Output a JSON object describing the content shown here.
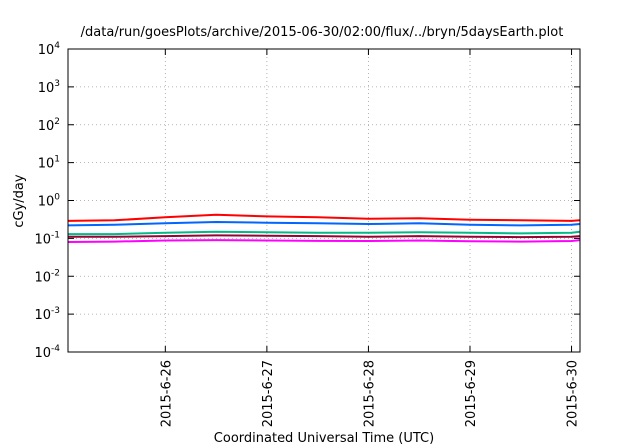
{
  "chart_data": {
    "type": "line",
    "title": "/data/run/goesPlots/archive/2015-06-30/02:00/flux/../bryn/5daysEarth.plot",
    "xlabel": "Coordinated Universal Time (UTC)",
    "ylabel": "cGy/day",
    "yscale": "log",
    "ylim": [
      0.0001,
      10000
    ],
    "y_ticks": [
      {
        "value": 0.0001,
        "base": "10",
        "exp": "-4"
      },
      {
        "value": 0.001,
        "base": "10",
        "exp": "-3"
      },
      {
        "value": 0.01,
        "base": "10",
        "exp": "-2"
      },
      {
        "value": 0.1,
        "base": "10",
        "exp": "-1"
      },
      {
        "value": 1,
        "base": "10",
        "exp": "0"
      },
      {
        "value": 10,
        "base": "10",
        "exp": "1"
      },
      {
        "value": 100,
        "base": "10",
        "exp": "2"
      },
      {
        "value": 1000,
        "base": "10",
        "exp": "3"
      },
      {
        "value": 10000,
        "base": "10",
        "exp": "4"
      }
    ],
    "xlim": [
      "2015-06-25T01:00",
      "2015-06-30T02:00"
    ],
    "x_ticks": [
      {
        "value": "2015-06-26T00:00",
        "label": "2015-6-26"
      },
      {
        "value": "2015-06-27T00:00",
        "label": "2015-6-27"
      },
      {
        "value": "2015-06-28T00:00",
        "label": "2015-6-28"
      },
      {
        "value": "2015-06-29T00:00",
        "label": "2015-6-29"
      },
      {
        "value": "2015-06-30T00:00",
        "label": "2015-6-30"
      }
    ],
    "grid": true,
    "x": [
      "2015-06-25T01:00",
      "2015-06-25T12:00",
      "2015-06-26T00:00",
      "2015-06-26T12:00",
      "2015-06-27T00:00",
      "2015-06-27T12:00",
      "2015-06-28T00:00",
      "2015-06-28T12:00",
      "2015-06-29T00:00",
      "2015-06-29T12:00",
      "2015-06-30T00:00",
      "2015-06-30T02:00"
    ],
    "series": [
      {
        "color": "#ff0000",
        "values": [
          0.29,
          0.3,
          0.36,
          0.42,
          0.38,
          0.36,
          0.33,
          0.34,
          0.31,
          0.3,
          0.29,
          0.3
        ]
      },
      {
        "color": "#0066ff",
        "values": [
          0.22,
          0.23,
          0.25,
          0.27,
          0.26,
          0.25,
          0.24,
          0.25,
          0.23,
          0.22,
          0.23,
          0.24
        ]
      },
      {
        "color": "#00bb88",
        "values": [
          0.13,
          0.13,
          0.14,
          0.15,
          0.145,
          0.14,
          0.14,
          0.145,
          0.14,
          0.135,
          0.14,
          0.15
        ]
      },
      {
        "color": "#990033",
        "values": [
          0.11,
          0.11,
          0.115,
          0.12,
          0.118,
          0.115,
          0.11,
          0.115,
          0.11,
          0.108,
          0.11,
          0.115
        ]
      },
      {
        "color": "#ff00ff",
        "values": [
          0.08,
          0.082,
          0.088,
          0.09,
          0.088,
          0.086,
          0.085,
          0.088,
          0.084,
          0.082,
          0.085,
          0.09
        ]
      }
    ]
  }
}
